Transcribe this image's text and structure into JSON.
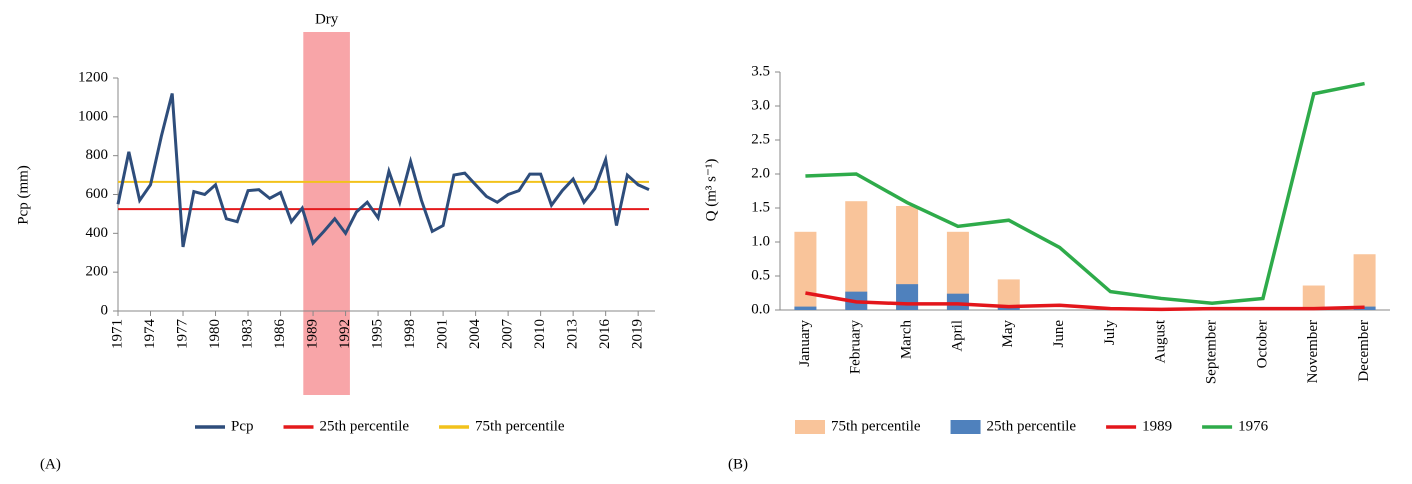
{
  "chart_data": [
    {
      "type": "line",
      "panel_label": "(A)",
      "y_label": "Pcp (mm)",
      "x": [
        1971,
        1972,
        1973,
        1974,
        1975,
        1976,
        1977,
        1978,
        1979,
        1980,
        1981,
        1982,
        1983,
        1984,
        1985,
        1986,
        1987,
        1988,
        1989,
        1990,
        1991,
        1992,
        1993,
        1994,
        1995,
        1996,
        1997,
        1998,
        1999,
        2000,
        2001,
        2002,
        2003,
        2004,
        2005,
        2006,
        2007,
        2008,
        2009,
        2010,
        2011,
        2012,
        2013,
        2014,
        2015,
        2016,
        2017,
        2018,
        2019,
        2020
      ],
      "xlim": [
        1971,
        2020
      ],
      "xticks": [
        1971,
        1974,
        1977,
        1980,
        1983,
        1986,
        1989,
        1992,
        1995,
        1998,
        2001,
        2004,
        2007,
        2010,
        2013,
        2016,
        2019
      ],
      "series": [
        {
          "name": "Pcp",
          "color": "#2e4d7b",
          "values": [
            550,
            820,
            570,
            650,
            900,
            1120,
            330,
            615,
            600,
            650,
            475,
            460,
            620,
            625,
            580,
            610,
            460,
            530,
            350,
            410,
            475,
            400,
            510,
            560,
            480,
            720,
            560,
            770,
            570,
            410,
            440,
            700,
            710,
            650,
            590,
            560,
            600,
            620,
            705,
            705,
            545,
            620,
            680,
            560,
            630,
            780,
            440,
            700,
            650,
            625
          ]
        }
      ],
      "hlines": [
        {
          "name": "25th percentile",
          "value": 525,
          "color": "#e41a1c"
        },
        {
          "name": "75th percentile",
          "value": 665,
          "color": "#f2c21b"
        }
      ],
      "span": {
        "label": "Dry",
        "x": [
          1988.1,
          1992.4
        ],
        "color": "#f8a5a8"
      },
      "ylim": [
        0,
        1200
      ],
      "yticks": [
        0,
        200,
        400,
        600,
        800,
        1000,
        1200
      ]
    },
    {
      "type": "combo",
      "panel_label": "(B)",
      "y_label": "Q (m³ s⁻¹)",
      "categories": [
        "January",
        "February",
        "March",
        "April",
        "May",
        "June",
        "July",
        "August",
        "September",
        "October",
        "November",
        "December"
      ],
      "series": [
        {
          "name": "75th percentile",
          "kind": "bar",
          "color": "#f9c49a",
          "values": [
            1.15,
            1.6,
            1.53,
            1.15,
            0.45,
            0,
            0,
            0,
            0,
            0,
            0.36,
            0.82
          ]
        },
        {
          "name": "25th percentile",
          "kind": "bar",
          "color": "#4f81bd",
          "values": [
            0.05,
            0.27,
            0.38,
            0.24,
            0.07,
            0,
            0,
            0,
            0,
            0,
            0,
            0.05
          ]
        },
        {
          "name": "1989",
          "kind": "line",
          "color": "#e3161b",
          "values": [
            0.25,
            0.12,
            0.09,
            0.09,
            0.05,
            0.07,
            0.02,
            0.01,
            0.02,
            0.02,
            0.02,
            0.04
          ]
        },
        {
          "name": "1976",
          "kind": "line",
          "color": "#2eab4a",
          "values": [
            1.97,
            2.0,
            1.58,
            1.23,
            1.32,
            0.92,
            0.27,
            0.17,
            0.1,
            0.17,
            3.18,
            3.33
          ]
        }
      ],
      "ylim": [
        0,
        3.5
      ],
      "yticks": [
        {
          "value": 0,
          "label": "0.0"
        },
        0.5,
        {
          "value": 1,
          "label": "1.0"
        },
        1.5,
        {
          "value": 2,
          "label": "2.0"
        },
        2.5,
        {
          "value": 3,
          "label": "3.0"
        },
        3.5
      ]
    }
  ]
}
